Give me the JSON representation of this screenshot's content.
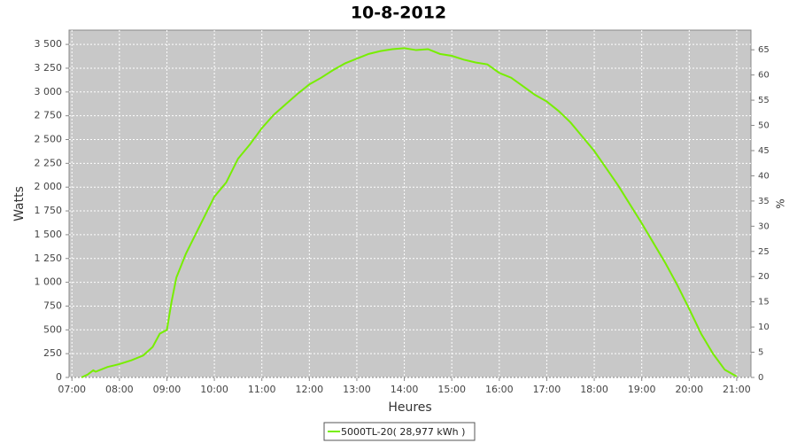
{
  "chart_data": {
    "type": "line",
    "title": "10-8-2012",
    "x_label": "Heures",
    "y_label": "Watts",
    "y2_label": "%",
    "grid": true,
    "x": [
      7.2,
      7.33,
      7.45,
      7.5,
      7.75,
      8,
      8.25,
      8.5,
      8.7,
      8.85,
      9,
      9.1,
      9.2,
      9.4,
      9.6,
      9.8,
      10,
      10.25,
      10.5,
      10.75,
      11,
      11.25,
      11.5,
      11.75,
      12,
      12.25,
      12.5,
      12.75,
      13,
      13.25,
      13.5,
      13.75,
      14,
      14.25,
      14.5,
      14.75,
      15,
      15.25,
      15.5,
      15.75,
      16,
      16.25,
      16.5,
      16.75,
      17,
      17.25,
      17.5,
      17.75,
      18,
      18.25,
      18.5,
      18.75,
      19,
      19.25,
      19.5,
      19.75,
      20,
      20.25,
      20.5,
      20.75,
      21
    ],
    "series": [
      {
        "name": "5000TL-20( 28,977 kWh )",
        "color": "#77ee00",
        "values": [
          0,
          30,
          75,
          60,
          110,
          140,
          180,
          230,
          320,
          460,
          500,
          800,
          1050,
          1300,
          1500,
          1700,
          1900,
          2050,
          2300,
          2450,
          2620,
          2760,
          2870,
          2980,
          3080,
          3150,
          3230,
          3300,
          3350,
          3400,
          3430,
          3450,
          3460,
          3440,
          3450,
          3400,
          3380,
          3340,
          3310,
          3290,
          3200,
          3150,
          3060,
          2970,
          2900,
          2800,
          2680,
          2530,
          2380,
          2200,
          2020,
          1820,
          1620,
          1410,
          1200,
          970,
          720,
          460,
          250,
          80,
          10
        ]
      }
    ],
    "xlim": [
      6.94,
      21.3
    ],
    "xticks": [
      {
        "value": 7,
        "label": "07:00"
      },
      {
        "value": 8,
        "label": "08:00"
      },
      {
        "value": 9,
        "label": "09:00"
      },
      {
        "value": 10,
        "label": "10:00"
      },
      {
        "value": 11,
        "label": "11:00"
      },
      {
        "value": 12,
        "label": "12:00"
      },
      {
        "value": 13,
        "label": "13:00"
      },
      {
        "value": 14,
        "label": "14:00"
      },
      {
        "value": 15,
        "label": "15:00"
      },
      {
        "value": 16,
        "label": "16:00"
      },
      {
        "value": 17,
        "label": "17:00"
      },
      {
        "value": 18,
        "label": "18:00"
      },
      {
        "value": 19,
        "label": "19:00"
      },
      {
        "value": 20,
        "label": "20:00"
      },
      {
        "value": 21,
        "label": "21:00"
      }
    ],
    "ylim": [
      0,
      3650
    ],
    "yticks": [
      0,
      250,
      500,
      750,
      {
        "value": 1000,
        "label": "1 000"
      },
      {
        "value": 1250,
        "label": "1 250"
      },
      {
        "value": 1500,
        "label": "1 500"
      },
      {
        "value": 1750,
        "label": "1 750"
      },
      {
        "value": 2000,
        "label": "2 000"
      },
      {
        "value": 2250,
        "label": "2 250"
      },
      {
        "value": 2500,
        "label": "2 500"
      },
      {
        "value": 2750,
        "label": "2 750"
      },
      {
        "value": 3000,
        "label": "3 000"
      },
      {
        "value": 3250,
        "label": "3 250"
      },
      {
        "value": 3500,
        "label": "3 500"
      }
    ],
    "y2lim": [
      0,
      68.9
    ],
    "y2ticks": [
      0,
      5,
      10,
      15,
      20,
      25,
      30,
      35,
      40,
      45,
      50,
      55,
      60,
      65
    ]
  }
}
